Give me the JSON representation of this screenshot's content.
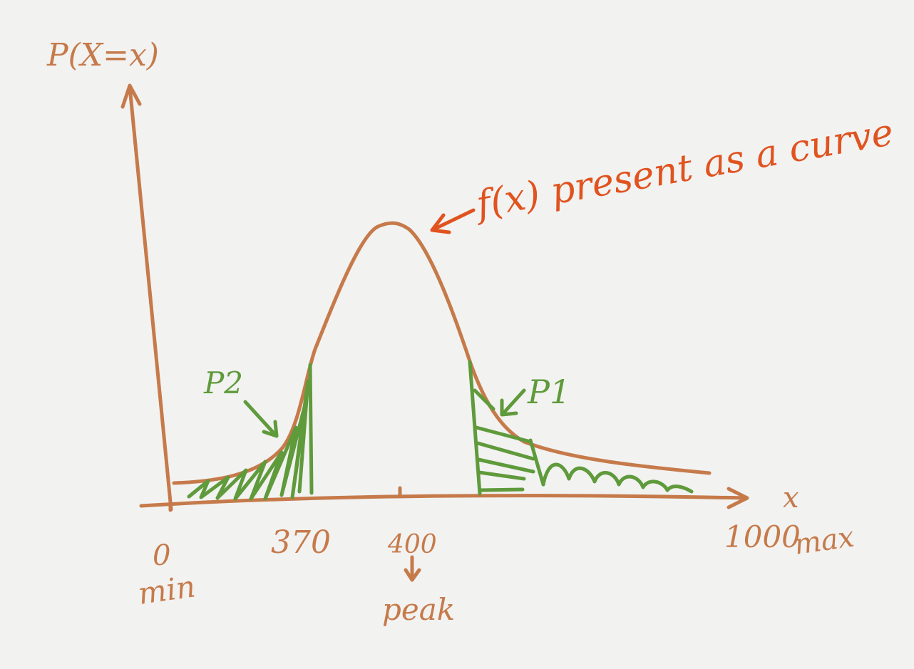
{
  "labels": {
    "y_axis": "P(X=x)",
    "x_axis": "x",
    "curve_note": "f(x) present as a curve",
    "x_zero": "0",
    "x_min": "min",
    "x_370": "370",
    "x_400": "400",
    "x_peak": "peak",
    "x_1000": "1000",
    "x_max": "max",
    "region_p1": "P1",
    "region_p2": "P2"
  },
  "colors": {
    "axes_and_curve": "#c67a4a",
    "annotation": "#e0531f",
    "shading": "#5f9a3b",
    "paper": "#f2f2f1"
  }
}
